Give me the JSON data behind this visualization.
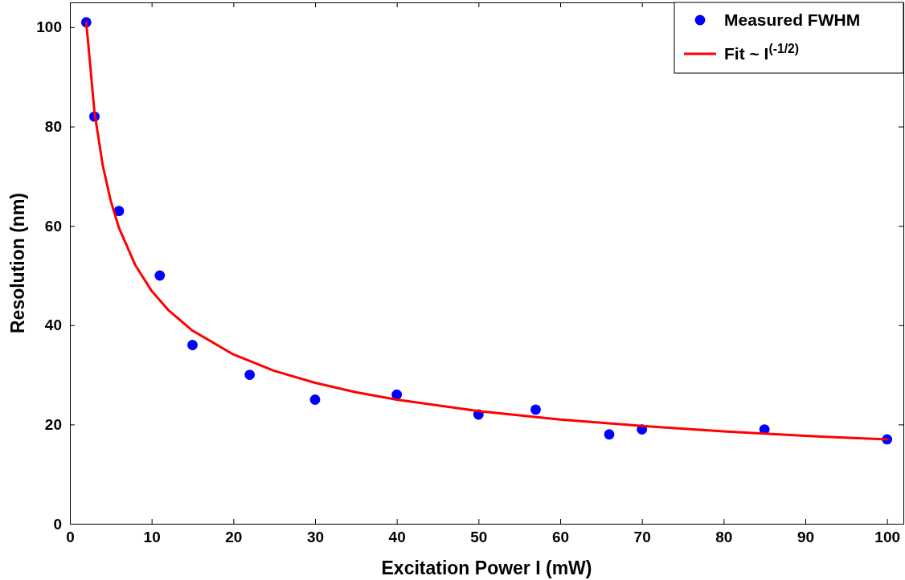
{
  "chart_data": {
    "type": "scatter",
    "xlabel": "Excitation Power I (mW)",
    "ylabel": "Resolution (nm)",
    "xlim": [
      0,
      102
    ],
    "ylim": [
      0,
      105
    ],
    "xticks": [
      0,
      10,
      20,
      30,
      40,
      50,
      60,
      70,
      80,
      90,
      100
    ],
    "yticks": [
      0,
      20,
      40,
      60,
      80,
      100
    ],
    "legend": "top right",
    "grid": false,
    "series": [
      {
        "name": "Measured FWHM",
        "marker": "circle",
        "color": "#0000ff",
        "x": [
          2,
          3,
          6,
          11,
          15,
          22,
          30,
          40,
          50,
          57,
          66,
          70,
          85,
          100
        ],
        "values": [
          101,
          82,
          63,
          50,
          36,
          30,
          25,
          26,
          22,
          23,
          18,
          19,
          19,
          17
        ]
      },
      {
        "name": "Fit ~ I$^{(-1/2)}$",
        "type": "line",
        "line_style": "solid",
        "color": "#ff0000",
        "x": [
          2,
          3,
          4,
          5,
          6,
          8,
          10,
          12,
          15,
          20,
          25,
          30,
          35,
          40,
          50,
          60,
          70,
          80,
          90,
          100
        ],
        "values": [
          101,
          83.0,
          72.3,
          65.0,
          59.6,
          52.1,
          46.9,
          43.1,
          38.9,
          34.1,
          30.8,
          28.4,
          26.5,
          25.0,
          22.7,
          21.0,
          19.7,
          18.6,
          17.7,
          17.0
        ]
      }
    ]
  }
}
